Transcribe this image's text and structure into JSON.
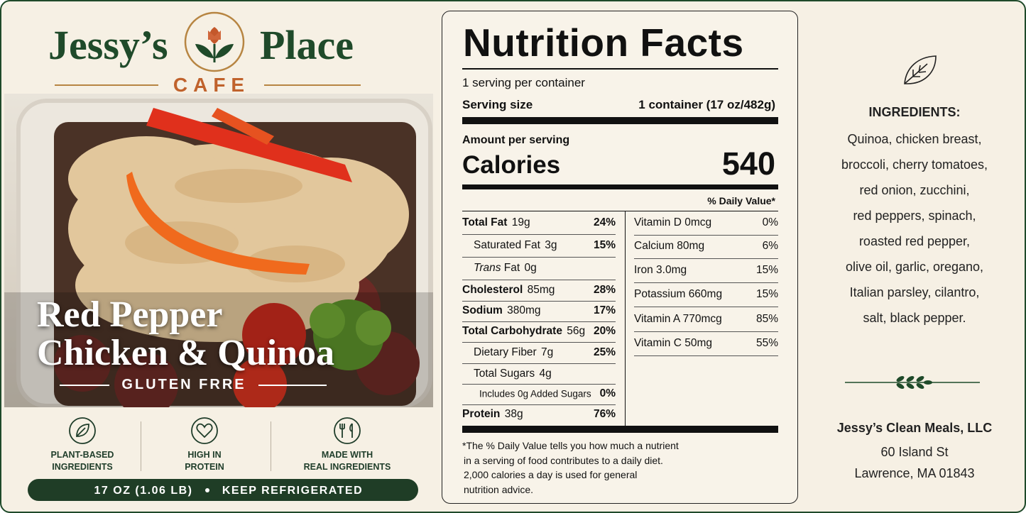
{
  "brand": {
    "name_left": "Jessy’s",
    "name_right": "Place",
    "sub": "CAFE"
  },
  "product": {
    "name_line1": "Red Pepper",
    "name_line2": "Chicken & Quinoa",
    "tag": "GLUTEN FRRE"
  },
  "badges": [
    [
      "PLANT-BASED",
      "INGREDIENTS"
    ],
    [
      "HIGH IN",
      "PROTEIN"
    ],
    [
      "MADE WITH",
      "REAL INGREDIENTS"
    ]
  ],
  "footer_bar": {
    "weight": "17 OZ (1.06 LB)",
    "storage": "KEEP REFRIGERATED"
  },
  "nutrition": {
    "title": "Nutrition Facts",
    "servings": "1 serving per container",
    "serving_size_label": "Serving size",
    "serving_size_value": "1 container (17 oz/482g)",
    "amount_label": "Amount per serving",
    "calories_label": "Calories",
    "calories": 540,
    "dv_header": "% Daily Value*",
    "left_rows": [
      {
        "label": "Total Fat",
        "amount": "19g",
        "dv": "24%"
      },
      {
        "label": "Saturated Fat",
        "amount": "3g",
        "dv": "15%"
      },
      {
        "label_italic": "Trans",
        "label": "Fat",
        "amount": "0g"
      },
      {
        "label": "Cholesterol",
        "amount": "85mg",
        "dv": "28%"
      },
      {
        "label": "Sodium",
        "amount": "380mg",
        "dv": "17%"
      },
      {
        "label": "Total Carbohydrate",
        "amount": "56g",
        "dv": "20%"
      },
      {
        "label": "Dietary Fiber",
        "amount": "7g",
        "dv": "25%"
      },
      {
        "label": "Total Sugars",
        "amount": "4g"
      },
      {
        "label": "Includes 0g Added Sugars",
        "dv": "0%"
      },
      {
        "label": "Protein",
        "amount": "38g",
        "dv": "76%"
      }
    ],
    "right_rows": [
      {
        "label": "Vitamin D",
        "amount": "0mcg",
        "dv": "0%"
      },
      {
        "label": "Calcium",
        "amount": "80mg",
        "dv": "6%"
      },
      {
        "label": "Iron",
        "amount": "3.0mg",
        "dv": "15%"
      },
      {
        "label": "Potassium",
        "amount": "660mg",
        "dv": "15%"
      },
      {
        "label": "Vitamin A",
        "amount": "770mcg",
        "dv": "85%"
      },
      {
        "label": "Vitamin C",
        "amount": "50mg",
        "dv": "55%"
      }
    ],
    "footnote": [
      "*The % Daily Value tells you how much a nutrient",
      "in a serving of food contributes to a daily diet.",
      "2,000 calories a day is used for general",
      "nutrition advice."
    ]
  },
  "ingredients": {
    "title": "INGREDIENTS:",
    "lines": [
      "Quinoa, chicken breast,",
      "broccoli, cherry tomatoes,",
      "red onion, zucchini,",
      "red peppers, spinach,",
      "roasted red pepper,",
      "olive oil, garlic, oregano,",
      "Italian parsley, cilantro,",
      "salt, black pepper."
    ]
  },
  "company": {
    "name": "Jessy’s Clean Meals, LLC",
    "street": "60 Island St",
    "city": "Lawrence, MA 01843"
  }
}
